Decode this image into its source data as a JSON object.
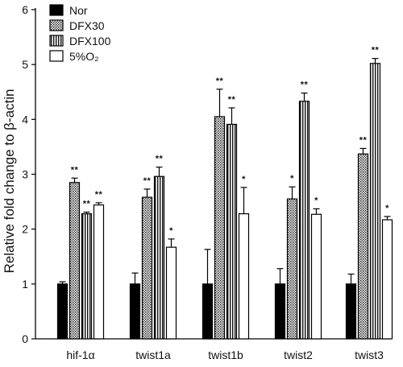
{
  "chart_data": {
    "type": "bar",
    "ylabel": "Relative fold change to β-actin",
    "ylim": [
      0,
      6
    ],
    "yticks": [
      0,
      1,
      2,
      3,
      4,
      5,
      6
    ],
    "categories": [
      "hif-1α",
      "twist1a",
      "twist1b",
      "twist2",
      "twist3"
    ],
    "legend_position": "top-left",
    "series": [
      {
        "name": "Nor",
        "pattern": "solid",
        "values": [
          1.0,
          1.0,
          1.0,
          1.0,
          1.0
        ],
        "errors": [
          0.04,
          0.2,
          0.63,
          0.28,
          0.18
        ],
        "significance": [
          "",
          "",
          "",
          "",
          ""
        ]
      },
      {
        "name": "DFX30",
        "pattern": "dots",
        "values": [
          2.85,
          2.58,
          4.05,
          2.55,
          3.37
        ],
        "errors": [
          0.08,
          0.15,
          0.5,
          0.22,
          0.1
        ],
        "significance": [
          "**",
          "**",
          "**",
          "*",
          "**"
        ]
      },
      {
        "name": "DFX100",
        "pattern": "vstripes",
        "values": [
          2.28,
          2.96,
          3.91,
          4.33,
          5.02
        ],
        "errors": [
          0.03,
          0.17,
          0.3,
          0.15,
          0.09
        ],
        "significance": [
          "**",
          "**",
          "**",
          "**",
          "**"
        ]
      },
      {
        "name": "5%O₂",
        "pattern": "open",
        "values": [
          2.44,
          1.67,
          2.28,
          2.27,
          2.17
        ],
        "errors": [
          0.04,
          0.15,
          0.48,
          0.1,
          0.06
        ],
        "significance": [
          "**",
          "*",
          "*",
          "*",
          "*"
        ]
      }
    ]
  }
}
